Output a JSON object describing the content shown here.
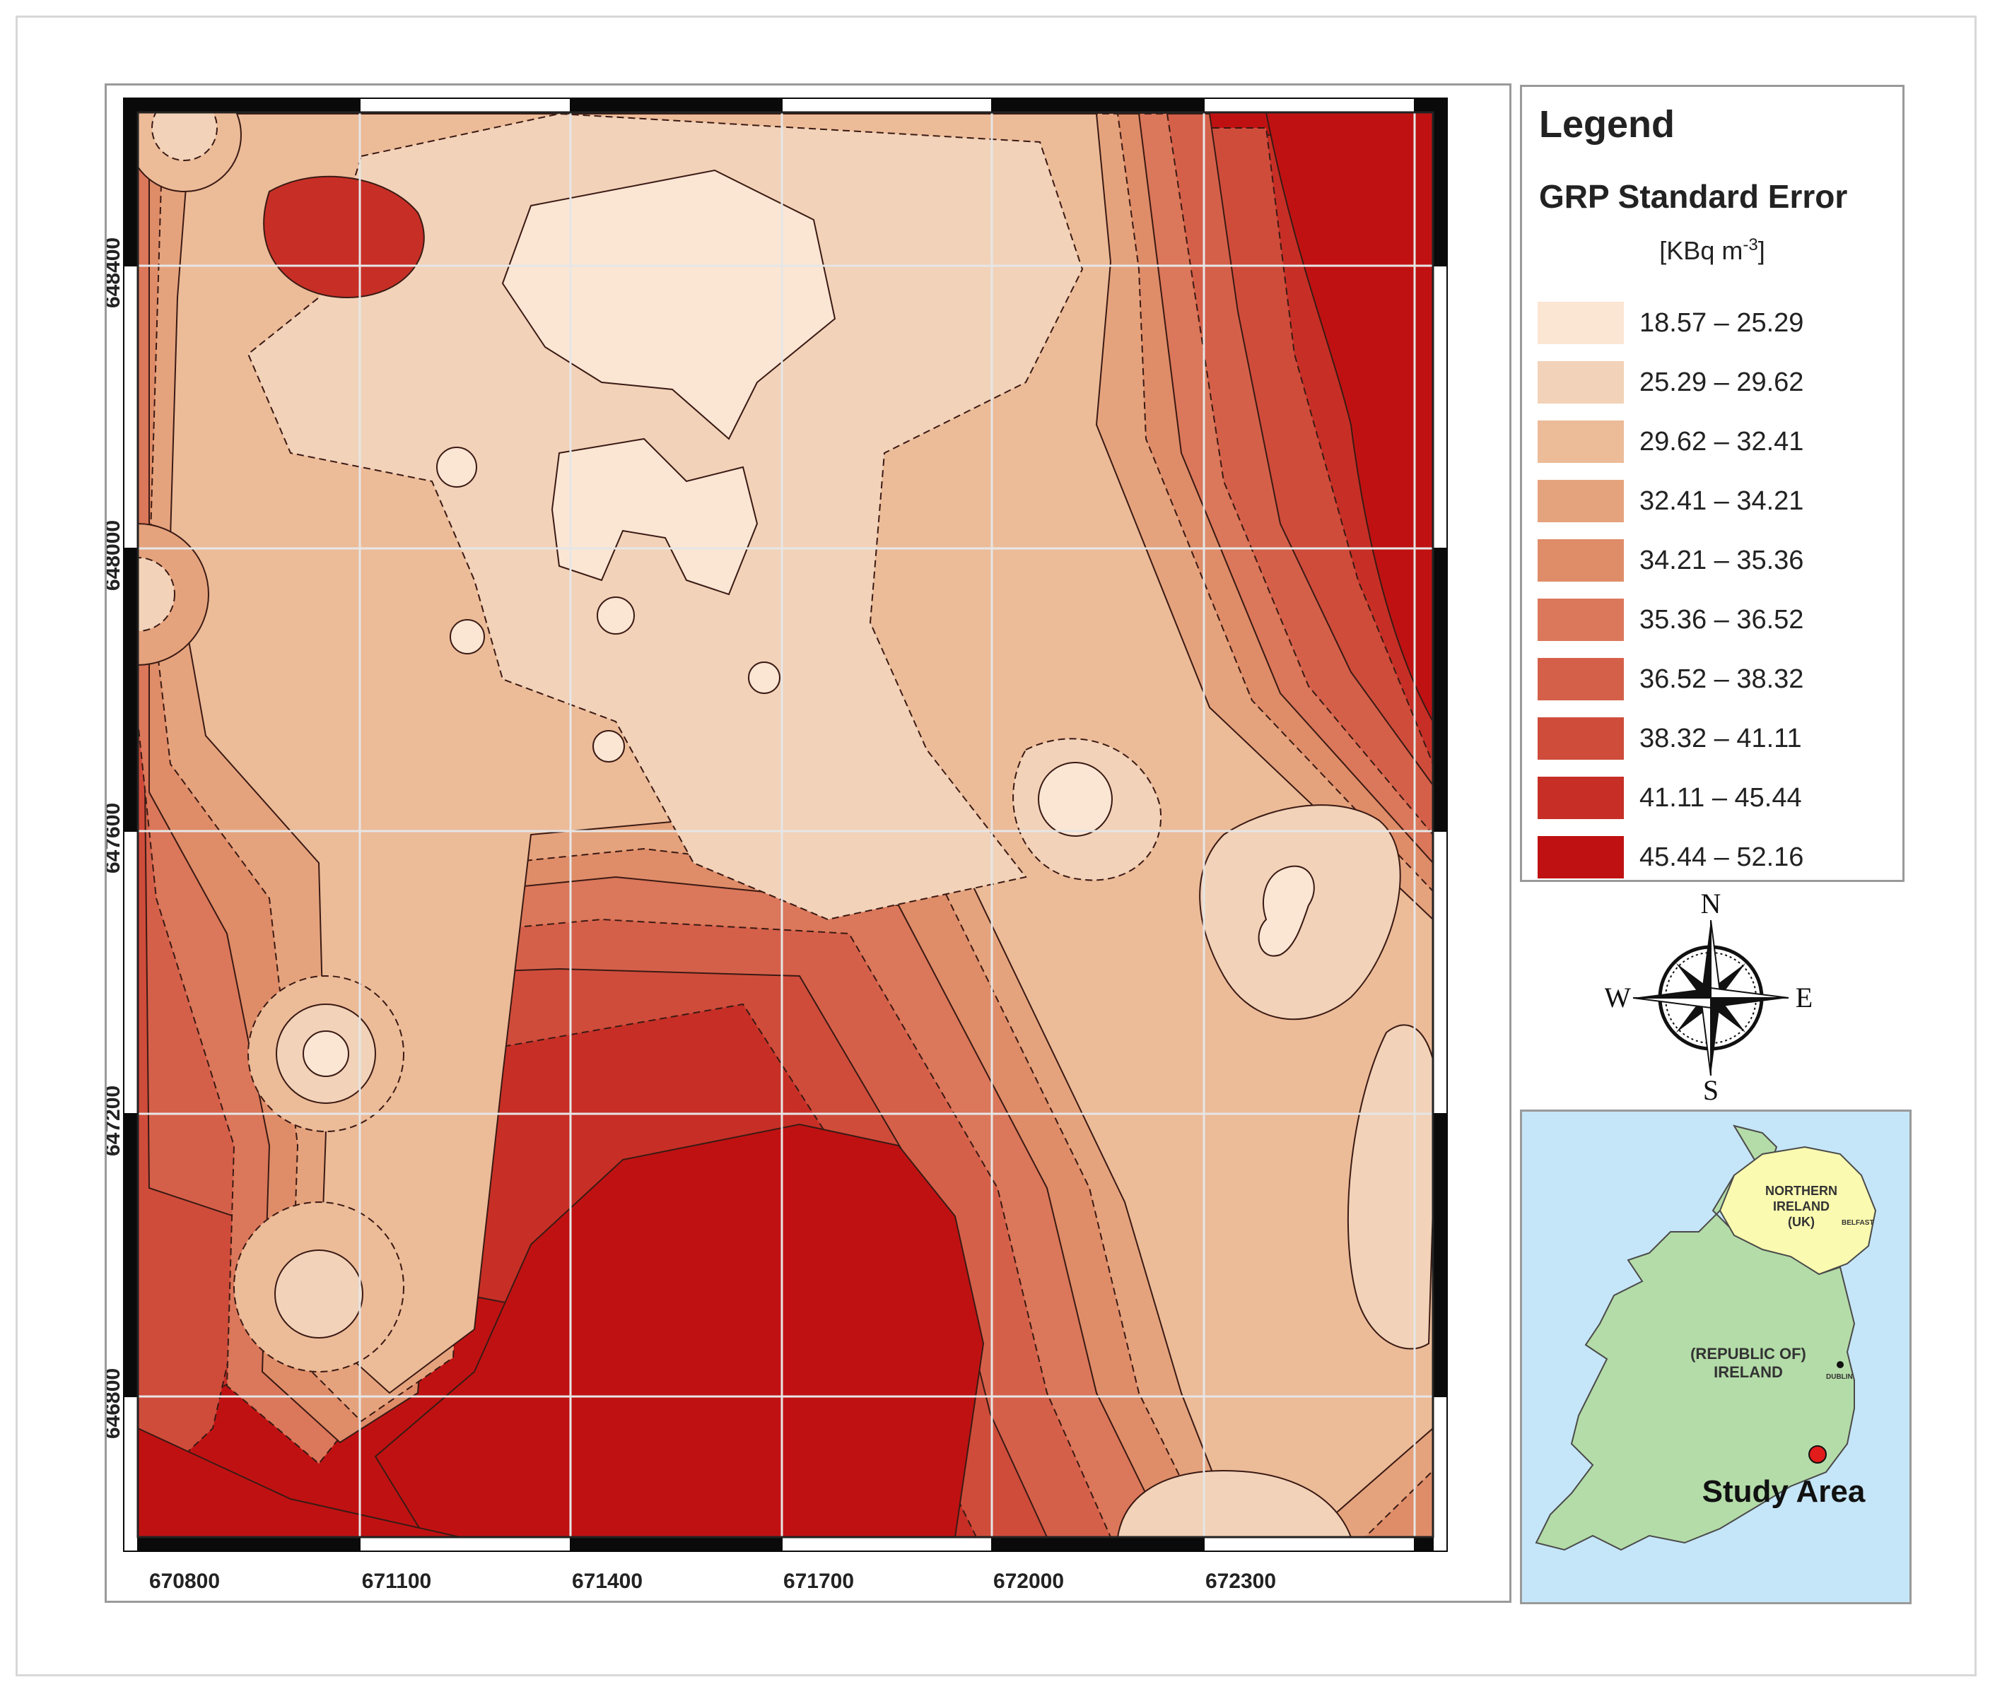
{
  "map": {
    "x_ticks": [
      "670800",
      "671100",
      "671400",
      "671700",
      "672000",
      "672300"
    ],
    "y_ticks": [
      "648400",
      "648000",
      "647600",
      "647200",
      "646800"
    ]
  },
  "legend": {
    "title": "Legend",
    "subtitle": "GRP Standard Error",
    "unit_prefix": "[KBq m",
    "unit_exp": "-3",
    "unit_suffix": "]",
    "classes": [
      {
        "label": "18.57 – 25.29",
        "color": "#fbe5d3"
      },
      {
        "label": "25.29 – 29.62",
        "color": "#f2d2b8"
      },
      {
        "label": "29.62 – 32.41",
        "color": "#ecbb98"
      },
      {
        "label": "32.41 – 34.21",
        "color": "#e5a37d"
      },
      {
        "label": "34.21 – 35.36",
        "color": "#df8c68"
      },
      {
        "label": "35.36 – 36.52",
        "color": "#db775a"
      },
      {
        "label": "36.52 – 38.32",
        "color": "#d5604a"
      },
      {
        "label": "38.32 – 41.11",
        "color": "#cf4c3b"
      },
      {
        "label": "41.11 – 45.44",
        "color": "#c72f26"
      },
      {
        "label": "45.44 – 52.16",
        "color": "#c01112"
      }
    ]
  },
  "compass": {
    "n": "N",
    "s": "S",
    "e": "E",
    "w": "W"
  },
  "inset": {
    "northern_ireland": [
      "NORTHERN",
      "IRELAND",
      "(UK)"
    ],
    "belfast": "BELFAST",
    "republic": [
      "(REPUBLIC OF)",
      "IRELAND"
    ],
    "dublin": "DUBLIN",
    "study_area": "Study Area",
    "colors": {
      "sea": "#c5e6f8",
      "roi": "#b4dca8",
      "ni": "#fafab0",
      "marker": "#e21b1b"
    }
  }
}
